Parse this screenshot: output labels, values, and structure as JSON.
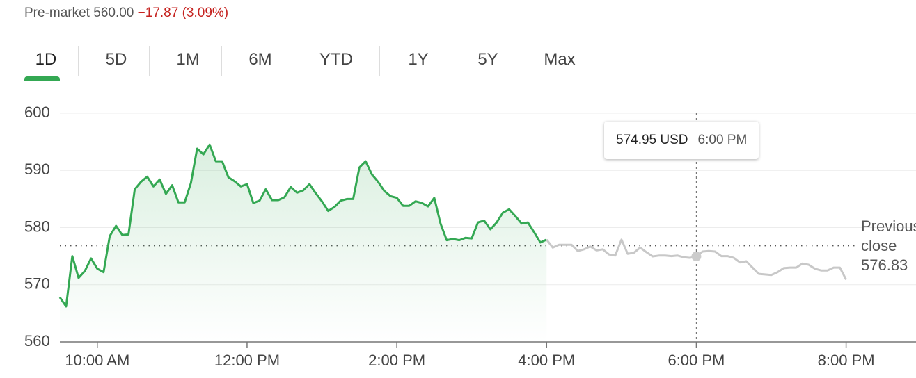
{
  "premarket": {
    "label": "Pre-market",
    "price": "560.00",
    "change": "−17.87 (3.09%)"
  },
  "tabs": [
    "1D",
    "5D",
    "1M",
    "6M",
    "YTD",
    "1Y",
    "5Y",
    "Max"
  ],
  "active_tab": 0,
  "chart_data": {
    "type": "line",
    "grid": true,
    "ylim": [
      560,
      600
    ],
    "yticks": [
      560,
      570,
      580,
      590,
      600
    ],
    "xlim": [
      570,
      1256
    ],
    "xticks": [
      {
        "value": 600,
        "label": "10:00 AM"
      },
      {
        "value": 720,
        "label": "12:00 PM"
      },
      {
        "value": 840,
        "label": "2:00 PM"
      },
      {
        "value": 960,
        "label": "4:00 PM"
      },
      {
        "value": 1080,
        "label": "6:00 PM"
      },
      {
        "value": 1200,
        "label": "8:00 PM"
      }
    ],
    "series": [
      {
        "color": "#34a853",
        "x": [
          570,
          575,
          580,
          585,
          590,
          595,
          600,
          605,
          610,
          615,
          620,
          625,
          630,
          635,
          640,
          645,
          650,
          655,
          660,
          665,
          670,
          675,
          680,
          685,
          690,
          695,
          700,
          705,
          710,
          715,
          720,
          725,
          730,
          735,
          740,
          745,
          750,
          755,
          760,
          765,
          770,
          775,
          780,
          785,
          790,
          795,
          800,
          805,
          810,
          815,
          820,
          825,
          830,
          835,
          840,
          845,
          850,
          855,
          860,
          865,
          870,
          875,
          880,
          885,
          890,
          895,
          900,
          905,
          910,
          915,
          920,
          925,
          930,
          935,
          940,
          945,
          950,
          955,
          960
        ],
        "values": [
          567.8,
          566.2,
          575.0,
          571.2,
          572.4,
          574.6,
          572.8,
          572.2,
          578.5,
          580.3,
          578.7,
          578.8,
          586.7,
          588.0,
          588.9,
          587.2,
          588.4,
          585.9,
          587.4,
          584.4,
          584.4,
          587.8,
          593.8,
          592.8,
          594.5,
          591.6,
          591.6,
          588.8,
          588.1,
          587.2,
          587.6,
          584.3,
          584.7,
          586.7,
          584.8,
          584.8,
          585.3,
          587.1,
          586.1,
          586.5,
          587.6,
          586.0,
          584.6,
          582.9,
          583.6,
          584.7,
          585.0,
          585.0,
          590.5,
          591.6,
          589.3,
          588.0,
          586.4,
          585.5,
          585.2,
          583.8,
          583.8,
          584.6,
          584.3,
          583.7,
          585.2,
          580.7,
          577.8,
          578.0,
          577.8,
          578.2,
          578.1,
          580.9,
          581.2,
          579.7,
          580.9,
          582.6,
          583.2,
          582.0,
          580.7,
          580.9,
          579.2,
          577.4,
          577.9
        ]
      },
      {
        "color": "#c8c8c8",
        "x": [
          960,
          965,
          970,
          975,
          980,
          985,
          990,
          995,
          1000,
          1005,
          1010,
          1015,
          1020,
          1025,
          1030,
          1035,
          1040,
          1045,
          1050,
          1055,
          1060,
          1065,
          1070,
          1075,
          1080,
          1085,
          1090,
          1095,
          1100,
          1105,
          1110,
          1115,
          1120,
          1125,
          1130,
          1135,
          1140,
          1145,
          1150,
          1155,
          1160,
          1165,
          1170,
          1175,
          1180,
          1185,
          1190,
          1195,
          1200
        ],
        "values": [
          577.9,
          576.5,
          577.0,
          577.0,
          577.0,
          575.9,
          576.2,
          576.7,
          576.0,
          576.2,
          575.3,
          575.1,
          577.9,
          575.4,
          575.6,
          576.5,
          575.7,
          574.95,
          575.1,
          575.1,
          575.0,
          575.1,
          574.8,
          574.7,
          574.95,
          575.8,
          575.9,
          575.8,
          575.0,
          575.0,
          574.7,
          573.9,
          574.1,
          573.0,
          571.9,
          571.8,
          571.7,
          572.2,
          572.9,
          573.0,
          573.0,
          573.7,
          573.5,
          572.8,
          572.5,
          572.5,
          573.0,
          573.0,
          570.9
        ]
      }
    ],
    "previous_close": {
      "label": "Previous close",
      "value": 576.83
    },
    "tooltip": {
      "x": 1080,
      "value": 574.95,
      "unit": "USD",
      "time": "6:00 PM"
    }
  }
}
